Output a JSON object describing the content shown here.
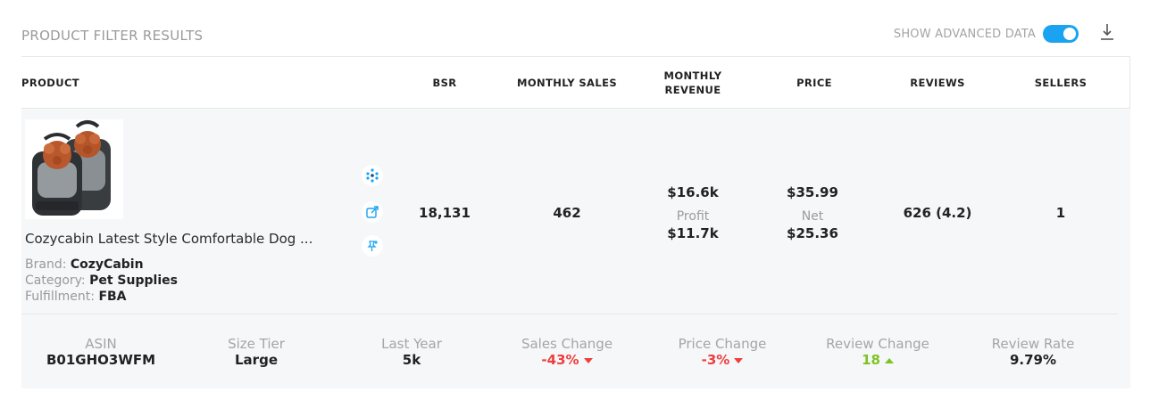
{
  "header": {
    "title": "PRODUCT FILTER RESULTS",
    "advanced_label": "SHOW ADVANCED DATA",
    "advanced_on": true,
    "download_icon": "download-icon",
    "accent_color": "#1aa3f0"
  },
  "columns": {
    "product": "PRODUCT",
    "bsr": "BSR",
    "monthly_sales": "MONTHLY SALES",
    "monthly_revenue": "MONTHLY REVENUE",
    "price": "PRICE",
    "reviews": "REVIEWS",
    "sellers": "SELLERS"
  },
  "row": {
    "title": "Cozycabin Latest Style Comfortable Dog ...",
    "brand_label": "Brand:",
    "brand": "CozyCabin",
    "category_label": "Category:",
    "category": "Pet Supplies",
    "fulfillment_label": "Fulfillment:",
    "fulfillment": "FBA",
    "icons": [
      "scatter-dots-icon",
      "external-link-icon",
      "pin-icon"
    ],
    "bsr": "18,131",
    "monthly_sales": "462",
    "revenue": "$16.6k",
    "profit_label": "Profit",
    "profit": "$11.7k",
    "price": "$35.99",
    "net_label": "Net",
    "net": "$25.36",
    "reviews": "626 (4.2)",
    "sellers": "1"
  },
  "advanced": [
    {
      "key": "ASIN",
      "value": "B01GHO3WFM",
      "trend": "none"
    },
    {
      "key": "Size Tier",
      "value": "Large",
      "trend": "none"
    },
    {
      "key": "Last Year",
      "value": "5k",
      "trend": "none"
    },
    {
      "key": "Sales Change",
      "value": "-43%",
      "trend": "down"
    },
    {
      "key": "Price Change",
      "value": "-3%",
      "trend": "down"
    },
    {
      "key": "Review Change",
      "value": "18",
      "trend": "up"
    },
    {
      "key": "Review Rate",
      "value": "9.79%",
      "trend": "none"
    }
  ],
  "colors": {
    "negative": "#ef3e3e",
    "positive": "#7cc423"
  }
}
